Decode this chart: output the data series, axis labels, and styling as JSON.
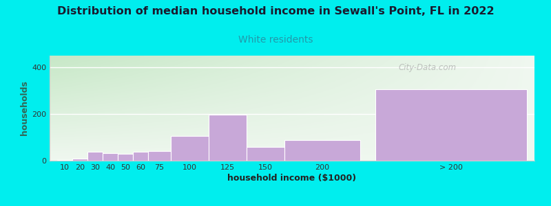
{
  "title": "Distribution of median household income in Sewall's Point, FL in 2022",
  "subtitle": "White residents",
  "xlabel": "household income ($1000)",
  "ylabel": "households",
  "background_color": "#00EEEE",
  "bar_color": "#c8a8d8",
  "watermark": "City-Data.com",
  "ylim": [
    0,
    450
  ],
  "yticks": [
    0,
    200,
    400
  ],
  "categories": [
    "10",
    "20",
    "30",
    "40",
    "50",
    "60",
    "75",
    "100",
    "125",
    "150",
    "200",
    "> 200"
  ],
  "values": [
    2,
    10,
    38,
    32,
    30,
    38,
    42,
    105,
    198,
    58,
    88,
    305
  ],
  "bar_widths": [
    10,
    10,
    10,
    10,
    10,
    10,
    15,
    25,
    25,
    25,
    50,
    100
  ],
  "bar_lefts": [
    5,
    15,
    25,
    35,
    45,
    55,
    65,
    80,
    105,
    130,
    155,
    215
  ],
  "title_fontsize": 11.5,
  "subtitle_fontsize": 10,
  "axis_label_fontsize": 9,
  "title_color": "#1a1a2e",
  "subtitle_color": "#2299aa",
  "tick_label_color": "#333333",
  "ylabel_color": "#336655"
}
